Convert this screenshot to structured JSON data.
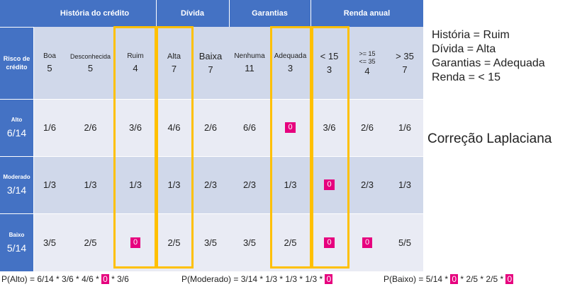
{
  "groups": {
    "historia": "História do crédito",
    "divida": "Dívida",
    "garantias": "Garantias",
    "renda": "Renda anual"
  },
  "risk_header": "Risco de crédito",
  "columns": [
    {
      "label": "Boa",
      "count": "5"
    },
    {
      "label": "Desconhecida",
      "count": "5"
    },
    {
      "label": "Ruim",
      "count": "4"
    },
    {
      "label": "Alta",
      "count": "7"
    },
    {
      "label": "Baixa",
      "count": "7"
    },
    {
      "label": "Nenhuma",
      "count": "11"
    },
    {
      "label": "Adequada",
      "count": "3"
    },
    {
      "label": "< 15",
      "count": "3"
    },
    {
      "label": ">= 15 <= 35",
      "count": "4"
    },
    {
      "label": "> 35",
      "count": "7"
    }
  ],
  "rows": [
    {
      "name": "Alto",
      "frac": "6/14",
      "values": [
        "1/6",
        "2/6",
        "3/6",
        "4/6",
        "2/6",
        "6/6",
        "0",
        "3/6",
        "2/6",
        "1/6"
      ]
    },
    {
      "name": "Moderado",
      "frac": "3/14",
      "values": [
        "1/3",
        "1/3",
        "1/3",
        "1/3",
        "2/3",
        "2/3",
        "1/3",
        "0",
        "2/3",
        "1/3"
      ]
    },
    {
      "name": "Baixo",
      "frac": "5/14",
      "values": [
        "3/5",
        "2/5",
        "0",
        "2/5",
        "3/5",
        "3/5",
        "2/5",
        "0",
        "0",
        "5/5"
      ]
    }
  ],
  "conditions": [
    "História = Ruim",
    "Dívida = Alta",
    "Garantias = Adequada",
    "Renda = < 15"
  ],
  "correction": "Correção Laplaciana",
  "formulas": {
    "alto": {
      "a": "P(Alto) = 6/14 * 3/6 * 4/6 * ",
      "z": "0",
      "b": " * 3/6"
    },
    "moderado": {
      "a": "P(Moderado) = 3/14 * 1/3 * 1/3 * 1/3 * ",
      "z": "0"
    },
    "baixo": {
      "a": "P(Baixo) = 5/14 * ",
      "z1": "0",
      "b": " * 2/5 * 2/5 * ",
      "z2": "0"
    }
  },
  "colors": {
    "header": "#4472c4",
    "highlight": "#ffc000",
    "zero": "#e6007e"
  }
}
